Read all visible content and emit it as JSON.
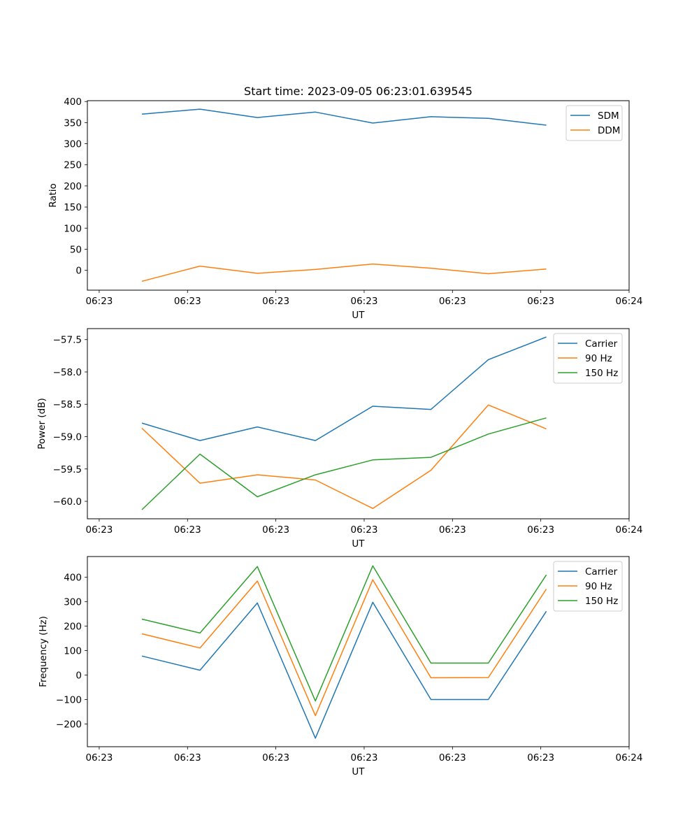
{
  "figure": {
    "title": "Start time: 2023-09-05 06:23:01.639545"
  },
  "chart_data": [
    {
      "type": "line",
      "title": "Start time: 2023-09-05 06:23:01.639545",
      "xlabel": "UT",
      "ylabel": "Ratio",
      "x_tick_labels": [
        "06:23",
        "06:23",
        "06:23",
        "06:23",
        "06:23",
        "06:23",
        "06:24"
      ],
      "x_tick_positions": [
        0,
        1,
        2,
        3,
        4,
        5,
        6
      ],
      "xlim": [
        -0.134,
        6.0
      ],
      "x": [
        0.483,
        1.141,
        1.791,
        2.448,
        3.098,
        3.756,
        4.406,
        5.063
      ],
      "ylim": [
        -47,
        402
      ],
      "y_ticks": [
        0,
        50,
        100,
        150,
        200,
        250,
        300,
        350,
        400
      ],
      "y_tick_labels": [
        "0",
        "50",
        "100",
        "150",
        "200",
        "250",
        "300",
        "350",
        "400"
      ],
      "legend": "top-right",
      "grid": false,
      "series": [
        {
          "name": "SDM",
          "color": "#1f77b4",
          "values": [
            370,
            382,
            362,
            375,
            349,
            364,
            360,
            344
          ]
        },
        {
          "name": "DDM",
          "color": "#ff7f0e",
          "values": [
            -26,
            10,
            -7,
            2,
            15,
            5,
            -8,
            3
          ]
        }
      ]
    },
    {
      "type": "line",
      "title": "",
      "xlabel": "UT",
      "ylabel": "Power (dB)",
      "x_tick_labels": [
        "06:23",
        "06:23",
        "06:23",
        "06:23",
        "06:23",
        "06:23",
        "06:24"
      ],
      "x_tick_positions": [
        0,
        1,
        2,
        3,
        4,
        5,
        6
      ],
      "xlim": [
        -0.134,
        6.0
      ],
      "x": [
        0.483,
        1.141,
        1.791,
        2.448,
        3.098,
        3.756,
        4.406,
        5.063
      ],
      "ylim": [
        -60.27,
        -57.33
      ],
      "y_ticks": [
        -60.0,
        -59.5,
        -59.0,
        -58.5,
        -58.0,
        -57.5
      ],
      "y_tick_labels": [
        "−60.0",
        "−59.5",
        "−59.0",
        "−58.5",
        "−58.0",
        "−57.5"
      ],
      "legend": "top-right",
      "grid": false,
      "series": [
        {
          "name": "Carrier",
          "color": "#1f77b4",
          "values": [
            -58.79,
            -59.06,
            -58.85,
            -59.06,
            -58.53,
            -58.58,
            -57.81,
            -57.46
          ]
        },
        {
          "name": "90 Hz",
          "color": "#ff7f0e",
          "values": [
            -58.87,
            -59.72,
            -59.59,
            -59.67,
            -60.11,
            -59.52,
            -58.51,
            -58.88
          ]
        },
        {
          "name": "150 Hz",
          "color": "#2ca02c",
          "values": [
            -60.13,
            -59.27,
            -59.93,
            -59.59,
            -59.36,
            -59.32,
            -58.96,
            -58.71
          ]
        }
      ]
    },
    {
      "type": "line",
      "title": "",
      "xlabel": "UT",
      "ylabel": "Frequency (Hz)",
      "x_tick_labels": [
        "06:23",
        "06:23",
        "06:23",
        "06:23",
        "06:23",
        "06:23",
        "06:24"
      ],
      "x_tick_positions": [
        0,
        1,
        2,
        3,
        4,
        5,
        6
      ],
      "xlim": [
        -0.134,
        6.0
      ],
      "x": [
        0.483,
        1.141,
        1.791,
        2.448,
        3.098,
        3.756,
        4.406,
        5.063
      ],
      "ylim": [
        -293,
        485
      ],
      "y_ticks": [
        -200,
        -100,
        0,
        100,
        200,
        300,
        400
      ],
      "y_tick_labels": [
        "−200",
        "−100",
        "0",
        "100",
        "200",
        "300",
        "400"
      ],
      "legend": "top-right",
      "grid": false,
      "series": [
        {
          "name": "Carrier",
          "color": "#1f77b4",
          "values": [
            78,
            20,
            295,
            -258,
            298,
            -100,
            -100,
            261
          ]
        },
        {
          "name": "90 Hz",
          "color": "#ff7f0e",
          "values": [
            169,
            111,
            385,
            -166,
            390,
            -11,
            -10,
            352
          ]
        },
        {
          "name": "150 Hz",
          "color": "#2ca02c",
          "values": [
            229,
            172,
            444,
            -106,
            447,
            49,
            49,
            410
          ]
        }
      ]
    }
  ]
}
